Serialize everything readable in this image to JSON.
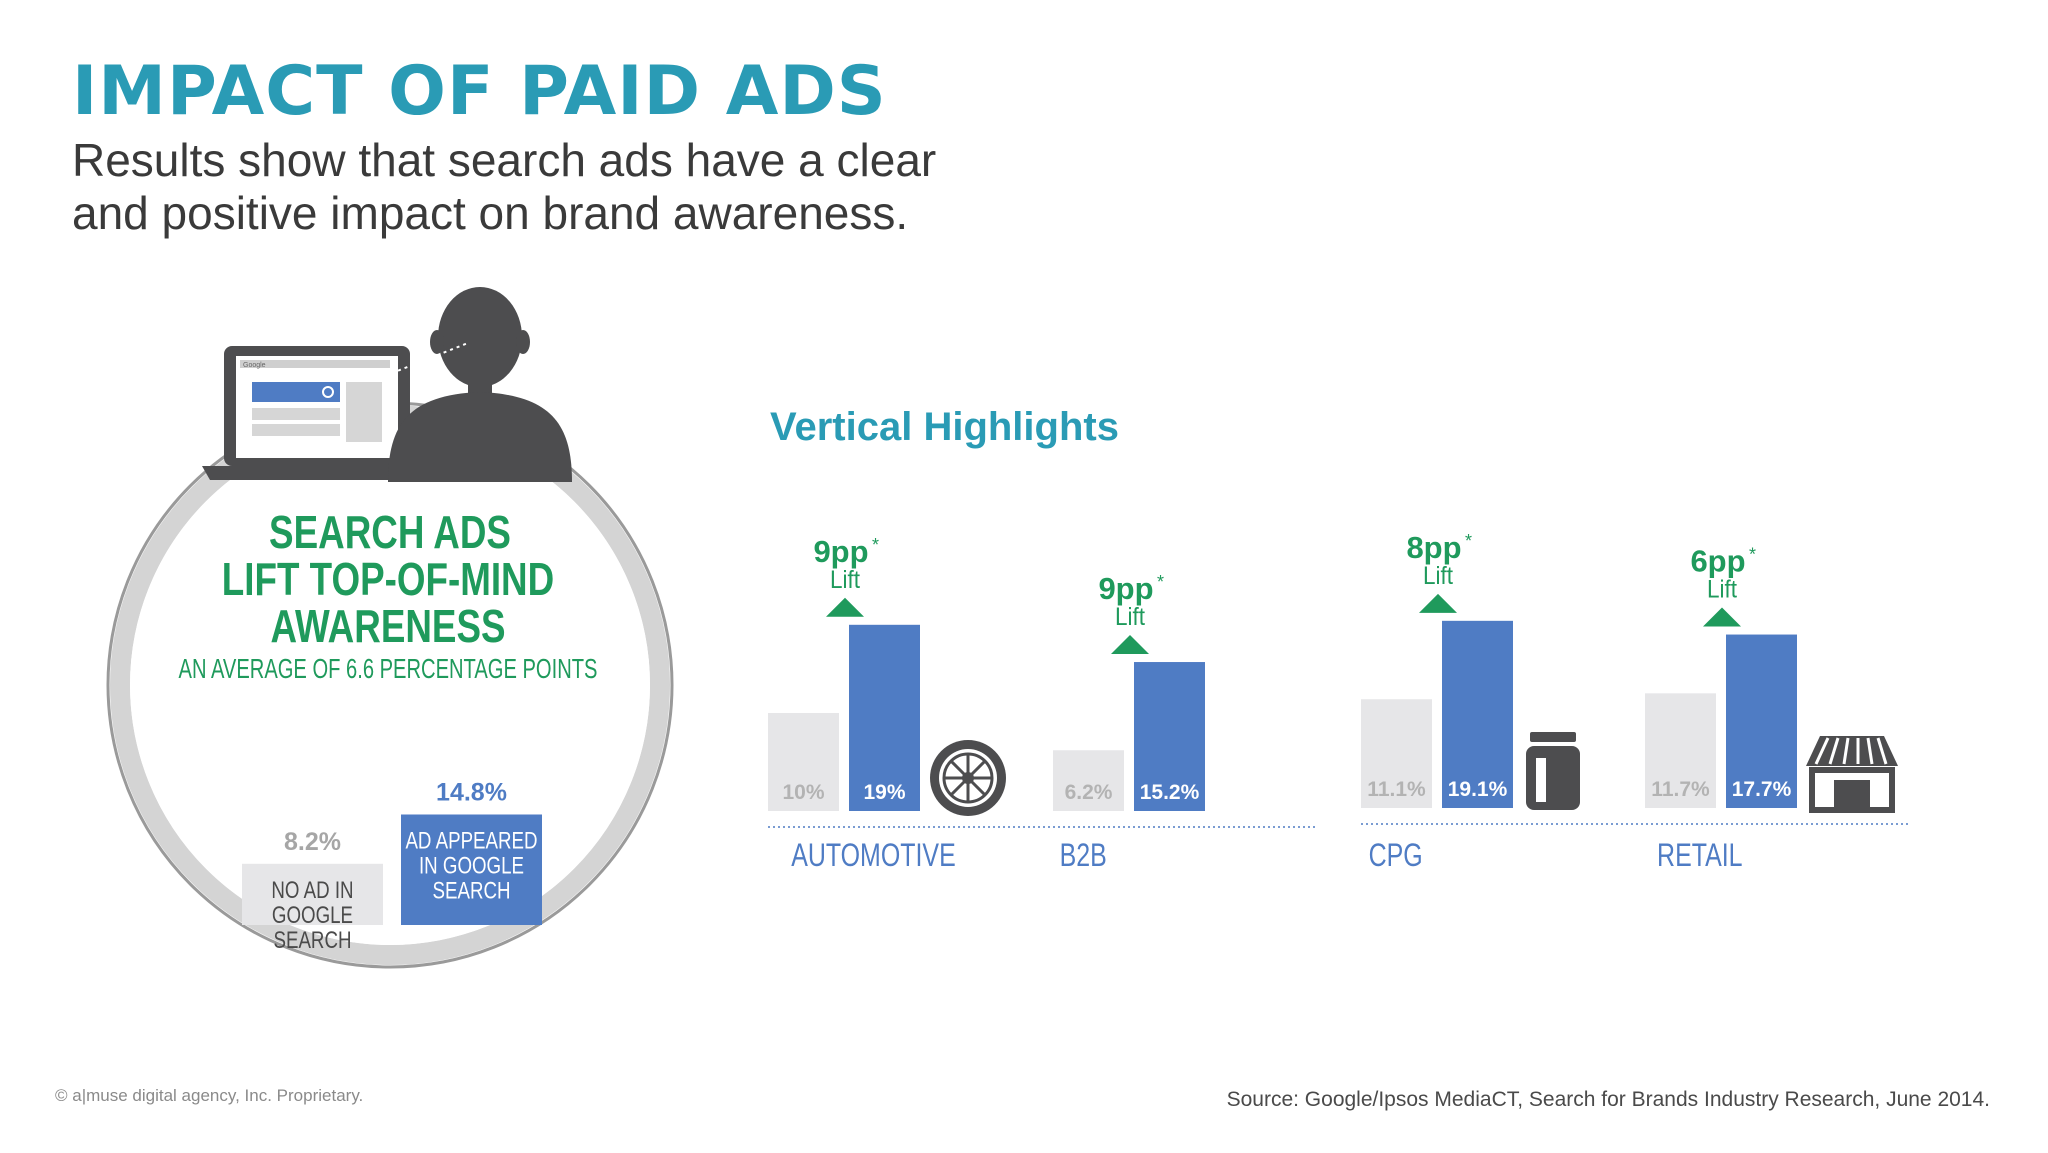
{
  "header": {
    "title": "IMPACT OF PAID ADS",
    "subtitle_line1": "Results show that search ads have a clear",
    "subtitle_line2": "and positive impact on brand awareness."
  },
  "hero": {
    "headline_line1": "SEARCH ADS",
    "headline_line2": "LIFT TOP-OF-MIND",
    "headline_line3": "AWARENESS",
    "subheadline": "AN AVERAGE OF 6.6 PERCENTAGE POINTS",
    "search_box_label": "Google"
  },
  "chart_data": [
    {
      "type": "bar",
      "categories": [
        "NO AD IN GOOGLE SEARCH",
        "AD APPEARED IN GOOGLE SEARCH"
      ],
      "values": [
        8.2,
        14.8
      ],
      "value_labels": [
        "8.2%",
        "14.8%"
      ],
      "bar_labels": [
        [
          "NO AD IN",
          "GOOGLE",
          "SEARCH"
        ],
        [
          "AD APPEARED",
          "IN GOOGLE",
          "SEARCH"
        ]
      ],
      "colors": [
        "#e6e6e8",
        "#4f7cc4"
      ],
      "label_colors": [
        "#a6a6a6",
        "#4f7cc4"
      ],
      "axis": "none"
    },
    {
      "type": "bar",
      "title": "Vertical Highlights",
      "series": [
        {
          "values": [
            10,
            6.2,
            11.1,
            11.7
          ],
          "color": "#e6e6e8"
        },
        {
          "values": [
            19,
            15.2,
            19.1,
            17.7
          ],
          "color": "#4f7cc4"
        }
      ],
      "categories": [
        "AUTOMOTIVE",
        "B2B",
        "CPG",
        "RETAIL"
      ],
      "value_labels": [
        [
          "10%",
          "19%"
        ],
        [
          "6.2%",
          "15.2%"
        ],
        [
          "11.1%",
          "19.1%"
        ],
        [
          "11.7%",
          "17.7%"
        ]
      ],
      "lifts": [
        {
          "value": "9pp",
          "star": "*",
          "label": "Lift"
        },
        {
          "value": "9pp",
          "star": "*",
          "label": "Lift"
        },
        {
          "value": "8pp",
          "star": "*",
          "label": "Lift"
        },
        {
          "value": "6pp",
          "star": "*",
          "label": "Lift"
        }
      ],
      "icons": [
        "tire-icon",
        null,
        "jar-icon",
        "storefront-icon"
      ],
      "lift_color": "#1f9a5c",
      "category_color": "#4f7cc4",
      "baseline": "dotted",
      "grid": false
    }
  ],
  "footer": {
    "left": "© a|muse  digital agency, Inc. Proprietary.",
    "right": "Source: Google/Ipsos MediaCT, Search for Brands Industry Research, June 2014."
  }
}
